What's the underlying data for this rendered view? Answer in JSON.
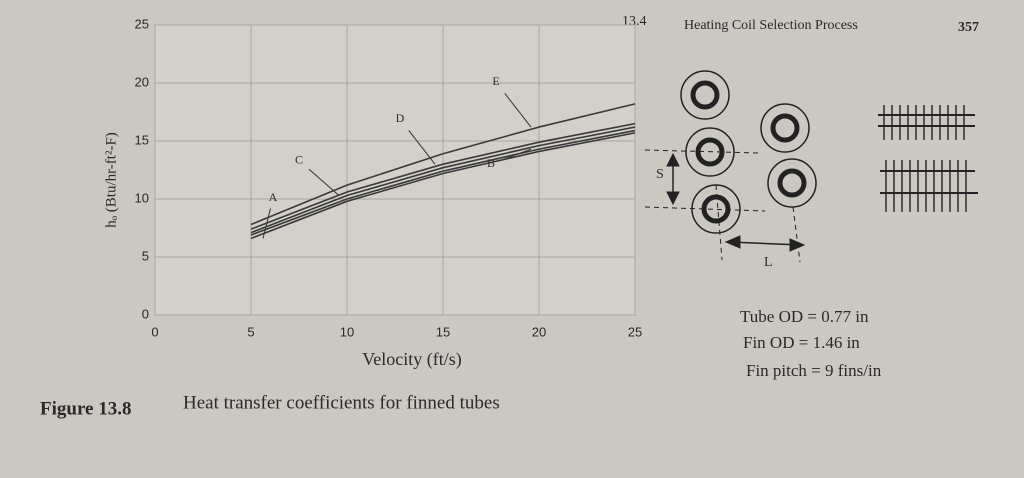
{
  "header": {
    "section": "13.4",
    "title": "Heating Coil Selection Process",
    "page": "357"
  },
  "caption": {
    "label": "Figure 13.8",
    "text": "Heat transfer coefficients for finned tubes"
  },
  "diagram": {
    "spacing_label": "S",
    "pitch_label": "L",
    "specs": [
      "Tube OD = 0.77 in",
      "Fin OD = 1.46 in",
      "Fin pitch = 9 fins/in"
    ]
  },
  "chart_data": {
    "type": "line",
    "x_label": "Velocity (ft/s)",
    "y_label": "hₒ (Btu/hr-ft²-F)",
    "x": [
      5,
      10,
      15,
      20,
      25
    ],
    "series": [
      {
        "name": "A",
        "color": "#3a3a3a",
        "values": [
          6.6,
          9.8,
          12.2,
          14.1,
          15.7
        ]
      },
      {
        "name": "B",
        "color": "#3a3a3a",
        "values": [
          6.9,
          10.0,
          12.4,
          14.3,
          15.9
        ]
      },
      {
        "name": "C",
        "color": "#3a3a3a",
        "values": [
          7.1,
          10.3,
          12.7,
          14.6,
          16.2
        ]
      },
      {
        "name": "D",
        "color": "#3a3a3a",
        "values": [
          7.4,
          10.6,
          13.0,
          14.9,
          16.5
        ]
      },
      {
        "name": "E",
        "color": "#3a3a3a",
        "values": [
          7.8,
          11.2,
          13.9,
          16.2,
          18.2
        ]
      }
    ],
    "xlim": [
      0,
      25
    ],
    "ylim": [
      0,
      25
    ],
    "xticks": [
      0,
      5,
      10,
      15,
      20,
      25
    ],
    "yticks": [
      0,
      5,
      10,
      15,
      20,
      25
    ],
    "grid": true
  }
}
